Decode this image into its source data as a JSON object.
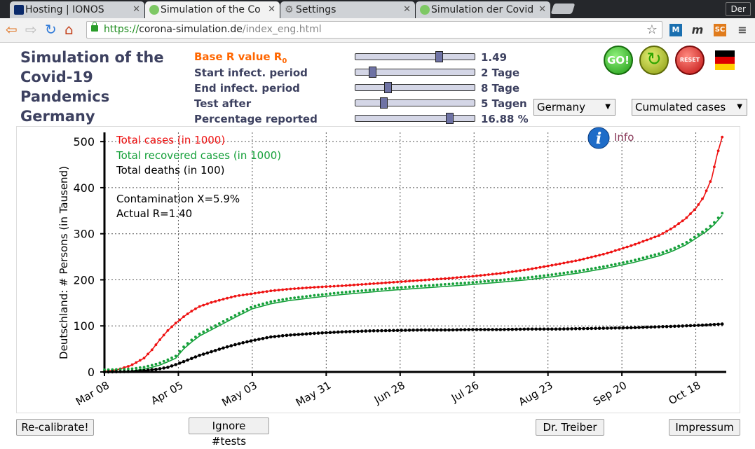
{
  "browser": {
    "tabs": [
      {
        "title": "Hosting | IONOS"
      },
      {
        "title": "Simulation of the Co"
      },
      {
        "title": "Settings"
      },
      {
        "title": "Simulation der Covid"
      }
    ],
    "profile": "Der",
    "url": {
      "scheme": "https://",
      "host": "corona-simulation.de",
      "path": "/index_eng.html"
    }
  },
  "app": {
    "title_lines": [
      "Simulation of the",
      "Covid-19",
      "Pandemics",
      "Germany"
    ],
    "params": [
      {
        "label": "Base R value R",
        "sub": "0",
        "value": "1.49",
        "slider_fraction": 0.72
      },
      {
        "label": "Start infect. period",
        "value": "2 Tage",
        "slider_fraction": 0.12
      },
      {
        "label": "End infect. period",
        "value": "8 Tage",
        "slider_fraction": 0.26
      },
      {
        "label": "Test after",
        "value": "5 Tagen",
        "slider_fraction": 0.22
      },
      {
        "label": "Percentage reported",
        "value": "16.88 %",
        "slider_fraction": 0.81
      }
    ],
    "country_select": "Germany",
    "mode_select": "Cumulated cases",
    "go_label": "GO!",
    "reset_label": "RESET",
    "flag_colors": [
      "#000000",
      "#dd0000",
      "#ffce00"
    ],
    "buttons": {
      "recalibrate": "Re-calibrate!",
      "ignore_tests": "Ignore #tests",
      "dr_treiber": "Dr. Treiber",
      "impressum": "Impressum"
    }
  },
  "chart_data": {
    "type": "line",
    "ylabel": "Deutschland: # Persons (in Tausend)",
    "ylim": [
      0,
      520
    ],
    "yticks": [
      0,
      100,
      200,
      300,
      400,
      500
    ],
    "xlim": [
      0,
      235
    ],
    "xticks": [
      {
        "day": 0,
        "label": "Mar 08"
      },
      {
        "day": 28,
        "label": "Apr 05"
      },
      {
        "day": 56,
        "label": "May 03"
      },
      {
        "day": 84,
        "label": "May 31"
      },
      {
        "day": 112,
        "label": "Jun 28"
      },
      {
        "day": 140,
        "label": "Jul 26"
      },
      {
        "day": 168,
        "label": "Aug 23"
      },
      {
        "day": 196,
        "label": "Sep 20"
      },
      {
        "day": 224,
        "label": "Oct 18"
      }
    ],
    "grid": true,
    "info_label": "Info",
    "legend": [
      "Total cases (in 1000)",
      "Total recovered cases (in 1000)",
      "Total deaths (in 100)"
    ],
    "annotations": [
      "Contamination X=5.9%",
      "Actual R=1.40"
    ],
    "series": [
      {
        "name": "Total cases (in 1000)",
        "color": "#ee1111",
        "x": [
          0,
          5,
          10,
          15,
          18,
          21,
          24,
          27,
          30,
          33,
          36,
          40,
          45,
          50,
          56,
          63,
          70,
          80,
          90,
          100,
          110,
          120,
          130,
          140,
          150,
          160,
          170,
          180,
          190,
          200,
          210,
          215,
          220,
          224,
          227,
          230,
          232,
          234
        ],
        "y": [
          1,
          5,
          14,
          30,
          48,
          70,
          90,
          106,
          120,
          132,
          142,
          150,
          158,
          165,
          170,
          176,
          180,
          184,
          187,
          191,
          195,
          199,
          203,
          208,
          214,
          222,
          232,
          243,
          257,
          275,
          296,
          312,
          332,
          355,
          380,
          420,
          470,
          510
        ]
      },
      {
        "name": "Total recovered cases (in 1000)",
        "color": "#16a03a",
        "x": [
          0,
          10,
          15,
          18,
          21,
          24,
          27,
          30,
          33,
          36,
          40,
          45,
          50,
          56,
          63,
          70,
          80,
          90,
          100,
          110,
          120,
          130,
          140,
          150,
          160,
          170,
          180,
          190,
          200,
          210,
          215,
          220,
          224,
          228,
          231,
          234
        ],
        "y": [
          0,
          2,
          6,
          10,
          15,
          22,
          30,
          50,
          65,
          78,
          90,
          105,
          120,
          137,
          148,
          155,
          162,
          168,
          173,
          178,
          182,
          186,
          190,
          195,
          200,
          207,
          215,
          225,
          237,
          252,
          262,
          275,
          290,
          305,
          320,
          340
        ]
      },
      {
        "name": "Total deaths (in 100)",
        "color": "#000000",
        "x": [
          0,
          10,
          15,
          20,
          24,
          28,
          32,
          36,
          40,
          45,
          50,
          56,
          63,
          70,
          80,
          90,
          100,
          110,
          120,
          130,
          140,
          150,
          160,
          170,
          180,
          190,
          200,
          210,
          220,
          228,
          234
        ],
        "y": [
          0,
          1,
          3,
          6,
          10,
          18,
          27,
          36,
          43,
          52,
          60,
          68,
          76,
          80,
          84,
          87,
          89,
          90,
          91,
          91,
          92,
          92,
          93,
          93,
          94,
          95,
          96,
          98,
          100,
          102,
          104
        ]
      }
    ]
  }
}
